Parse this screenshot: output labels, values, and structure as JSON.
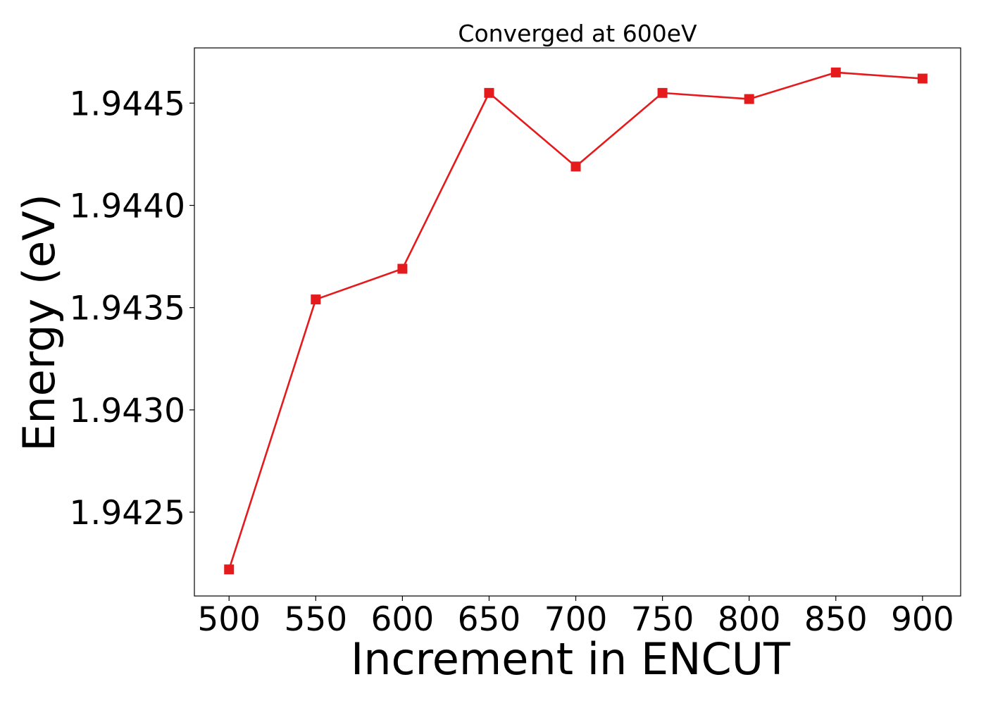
{
  "chart_data": {
    "type": "line",
    "title": "Converged at 600eV",
    "xlabel": "Increment in ENCUT",
    "ylabel": "Energy (eV)",
    "x": [
      500,
      550,
      600,
      650,
      700,
      750,
      800,
      850,
      900
    ],
    "series": [
      {
        "values": [
          1.94222,
          1.94354,
          1.94369,
          1.94455,
          1.94419,
          1.94455,
          1.94452,
          1.94465,
          1.94462
        ],
        "color": "#e41a1c",
        "marker": "square"
      }
    ],
    "xlim": [
      480,
      922
    ],
    "ylim": [
      1.94209,
      1.94477
    ],
    "xticks": [
      500,
      550,
      600,
      650,
      700,
      750,
      800,
      850,
      900
    ],
    "xtick_labels": [
      "500",
      "550",
      "600",
      "650",
      "700",
      "750",
      "800",
      "850",
      "900"
    ],
    "yticks": [
      1.9425,
      1.943,
      1.9435,
      1.944,
      1.9445
    ],
    "ytick_labels": [
      "1.9425",
      "1.9430",
      "1.9435",
      "1.9440",
      "1.9445"
    ],
    "grid": false,
    "legend": "none"
  }
}
